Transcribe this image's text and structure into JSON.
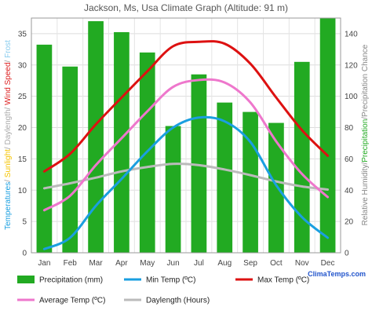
{
  "chart_data": {
    "type": "bar",
    "title": "Jackson, Ms, Usa Climate Graph (Altitude: 91 m)",
    "categories": [
      "Jan",
      "Feb",
      "Mar",
      "Apr",
      "May",
      "Jun",
      "Jul",
      "Aug",
      "Sep",
      "Oct",
      "Nov",
      "Dec"
    ],
    "left_axis": {
      "ylim": [
        0,
        37.5
      ],
      "ticks": [
        0,
        5,
        10,
        15,
        20,
        25,
        30,
        35
      ],
      "label_parts": [
        {
          "text": "Temperatures",
          "color": "#1a9fe0"
        },
        {
          "text": "/ ",
          "color": "#999999"
        },
        {
          "text": "Sunlight",
          "color": "#f5c400"
        },
        {
          "text": "/ ",
          "color": "#999999"
        },
        {
          "text": "Daylength",
          "color": "#aaaaaa"
        },
        {
          "text": "/ ",
          "color": "#999999"
        },
        {
          "text": "Wind Speed",
          "color": "#dd2222"
        },
        {
          "text": "/ ",
          "color": "#999999"
        },
        {
          "text": "Frost",
          "color": "#88ccee"
        }
      ]
    },
    "right_axis": {
      "ylim": [
        0,
        150
      ],
      "ticks": [
        0,
        20,
        40,
        60,
        80,
        100,
        120,
        140
      ],
      "label_parts": [
        {
          "text": "Relative Humidity",
          "color": "#888888"
        },
        {
          "text": "/",
          "color": "#888888"
        },
        {
          "text": "Precipitation",
          "color": "#22aa22"
        },
        {
          "text": "/",
          "color": "#888888"
        },
        {
          "text": "Precipitation Chance",
          "color": "#888888"
        }
      ]
    },
    "series": [
      {
        "name": "Precipitation (mm)",
        "axis": "right",
        "kind": "bar",
        "color": "#22aa22",
        "values": [
          133,
          119,
          148,
          141,
          128,
          81,
          114,
          96,
          90,
          83,
          122,
          150
        ]
      },
      {
        "name": "Min Temp (ºC)",
        "axis": "left",
        "kind": "line",
        "color": "#1a9fe0",
        "values": [
          0.6,
          2.4,
          7.5,
          11.8,
          16.2,
          20.0,
          21.6,
          21.0,
          17.7,
          10.8,
          5.7,
          2.4
        ]
      },
      {
        "name": "Max Temp (ºC)",
        "axis": "left",
        "kind": "line",
        "color": "#dd1111",
        "values": [
          13.0,
          15.8,
          20.5,
          24.8,
          29.0,
          33.0,
          33.7,
          33.4,
          30.2,
          24.8,
          19.6,
          15.5
        ]
      },
      {
        "name": "Average Temp (ºC)",
        "axis": "left",
        "kind": "line",
        "color": "#ee77cc",
        "values": [
          6.8,
          9.1,
          14.0,
          18.3,
          22.6,
          26.5,
          27.6,
          27.2,
          24.0,
          17.8,
          12.6,
          8.9
        ]
      },
      {
        "name": "Daylength (Hours)",
        "axis": "left",
        "kind": "line",
        "color": "#bbbbbb",
        "values": [
          10.3,
          11.1,
          12.0,
          13.0,
          13.7,
          14.2,
          14.0,
          13.3,
          12.4,
          11.4,
          10.6,
          10.1
        ]
      }
    ],
    "grid": true
  },
  "brand": {
    "text": "ClimaTemps.com"
  }
}
